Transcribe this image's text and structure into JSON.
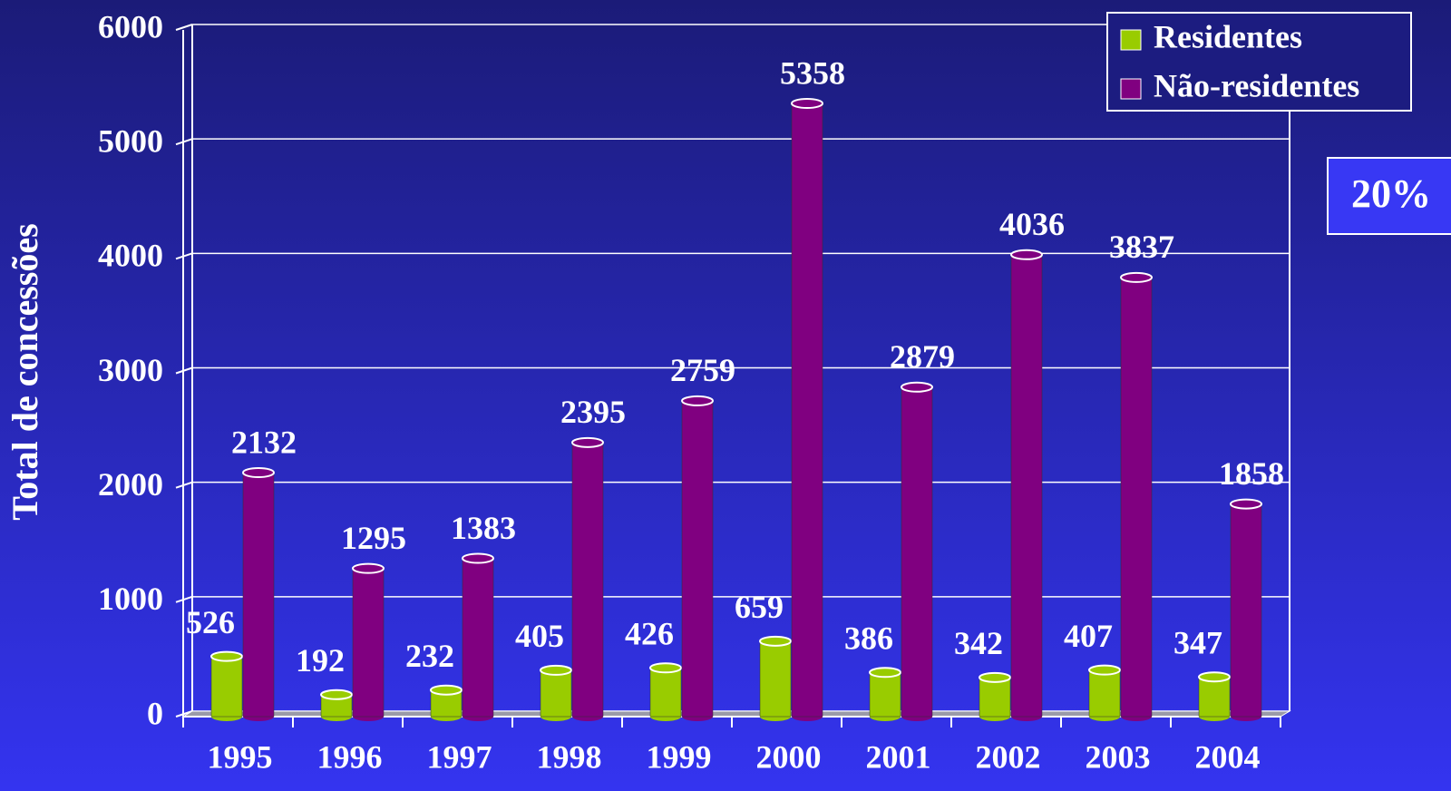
{
  "chart_data": {
    "type": "bar",
    "y_label": "Total de concessões",
    "annotation": "20%",
    "categories": [
      "1995",
      "1996",
      "1997",
      "1998",
      "1999",
      "2000",
      "2001",
      "2002",
      "2003",
      "2004"
    ],
    "series": [
      {
        "name": "Residentes",
        "color": "#99cc00",
        "values": [
          526,
          192,
          232,
          405,
          426,
          659,
          386,
          342,
          407,
          347
        ]
      },
      {
        "name": "Não-residentes",
        "color": "#800080",
        "values": [
          2132,
          1295,
          1383,
          2395,
          2759,
          5358,
          2879,
          4036,
          3837,
          1858
        ]
      }
    ],
    "ylim": [
      0,
      6000
    ],
    "yticks": [
      0,
      1000,
      2000,
      3000,
      4000,
      5000,
      6000
    ],
    "grid": true,
    "legend": "top-right"
  }
}
